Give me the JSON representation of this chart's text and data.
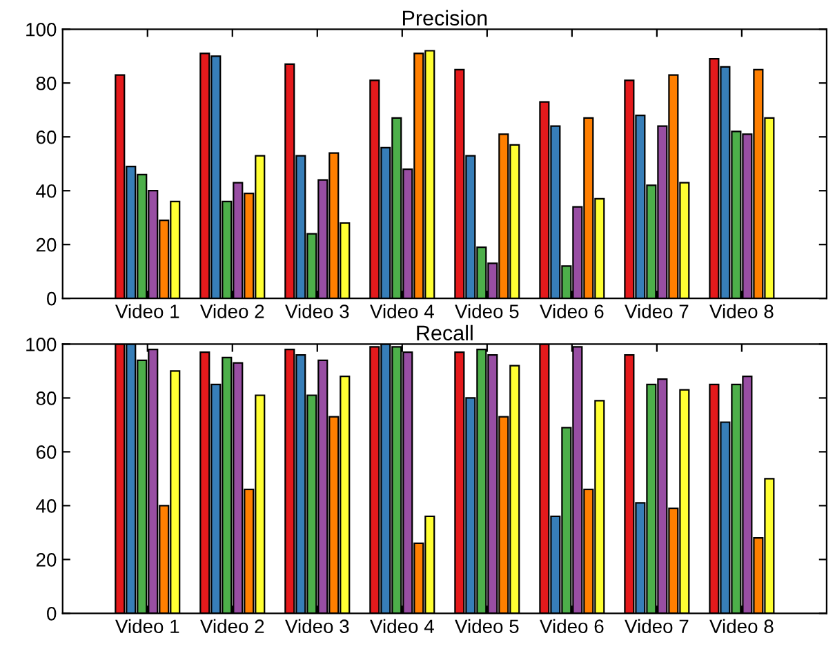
{
  "chart_data": [
    {
      "type": "bar",
      "title": "Precision",
      "categories": [
        "Video 1",
        "Video 2",
        "Video 3",
        "Video 4",
        "Video 5",
        "Video 6",
        "Video 7",
        "Video 8"
      ],
      "ylim": [
        0,
        100
      ],
      "yticks": [
        0,
        20,
        40,
        60,
        80,
        100
      ],
      "grid": false,
      "legend": false,
      "series": [
        {
          "color": "#e41a1c",
          "values": [
            83,
            91,
            87,
            81,
            85,
            73,
            81,
            89
          ]
        },
        {
          "color": "#377eb8",
          "values": [
            49,
            90,
            53,
            56,
            53,
            64,
            68,
            86
          ]
        },
        {
          "color": "#4daf4a",
          "values": [
            46,
            36,
            24,
            67,
            19,
            12,
            42,
            62
          ]
        },
        {
          "color": "#984ea3",
          "values": [
            40,
            43,
            44,
            48,
            13,
            34,
            64,
            61
          ]
        },
        {
          "color": "#ff7f00",
          "values": [
            29,
            39,
            54,
            91,
            61,
            67,
            83,
            85
          ]
        },
        {
          "color": "#ffff33",
          "values": [
            36,
            53,
            28,
            92,
            57,
            37,
            43,
            67
          ]
        }
      ]
    },
    {
      "type": "bar",
      "title": "Recall",
      "categories": [
        "Video 1",
        "Video 2",
        "Video 3",
        "Video 4",
        "Video 5",
        "Video 6",
        "Video 7",
        "Video 8"
      ],
      "ylim": [
        0,
        100
      ],
      "yticks": [
        0,
        20,
        40,
        60,
        80,
        100
      ],
      "grid": false,
      "legend": false,
      "series": [
        {
          "color": "#e41a1c",
          "values": [
            100,
            97,
            98,
            99,
            97,
            100,
            96,
            85
          ]
        },
        {
          "color": "#377eb8",
          "values": [
            100,
            85,
            96,
            100,
            80,
            36,
            41,
            71
          ]
        },
        {
          "color": "#4daf4a",
          "values": [
            94,
            95,
            81,
            99,
            98,
            69,
            85,
            85
          ]
        },
        {
          "color": "#984ea3",
          "values": [
            98,
            93,
            94,
            97,
            96,
            99,
            87,
            88
          ]
        },
        {
          "color": "#ff7f00",
          "values": [
            40,
            46,
            73,
            26,
            73,
            46,
            39,
            28
          ]
        },
        {
          "color": "#ffff33",
          "values": [
            90,
            81,
            88,
            36,
            92,
            79,
            83,
            50
          ]
        }
      ]
    }
  ]
}
